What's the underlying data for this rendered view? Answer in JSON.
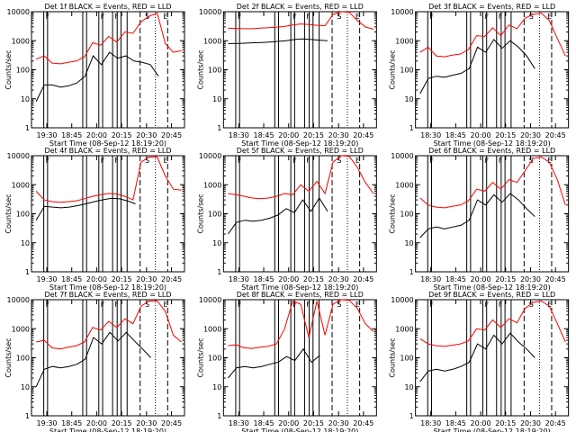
{
  "chart_data": [
    {
      "type": "line",
      "title": "Det 1f BLACK = Events, RED = LLD",
      "xlabel": "Start Time (08-Sep-12 18:19:20)",
      "ylabel": "Counts/sec",
      "x_ticks": [
        "19:30",
        "18:45",
        "20:00",
        "20:15",
        "20:30",
        "20:45"
      ],
      "y_ticks": [
        "1",
        "10",
        "100",
        "1000",
        "10000"
      ],
      "ylim": [
        1,
        10000
      ],
      "yscale": "log",
      "flags": [
        "F",
        "F",
        "F",
        "S",
        "E"
      ],
      "series": [
        {
          "color": "#ff0000",
          "values": [
            230,
            300,
            170,
            160,
            180,
            200,
            280,
            850,
            700,
            1400,
            900,
            2000,
            1800,
            4500,
            7000,
            9000,
            800,
            400,
            450
          ]
        },
        {
          "color": "#000000",
          "values": [
            8,
            30,
            30,
            25,
            28,
            35,
            60,
            300,
            150,
            400,
            250,
            300,
            200,
            180,
            150,
            60
          ]
        }
      ]
    },
    {
      "type": "line",
      "title": "Det 2f BLACK = Events, RED = LLD",
      "xlabel": "Start Time (08-Sep-12 18:19:20)",
      "ylabel": "Counts/sec",
      "x_ticks": [
        "18:30",
        "18:45",
        "20:00",
        "20:15",
        "20:30",
        "20:45"
      ],
      "y_ticks": [
        "1",
        "10",
        "100",
        "1000",
        "10000"
      ],
      "ylim": [
        1,
        10000
      ],
      "yscale": "log",
      "flags": [
        "F",
        "F",
        "F",
        "S",
        "E"
      ],
      "series": [
        {
          "color": "#ff0000",
          "values": [
            2700,
            2650,
            2600,
            2600,
            2700,
            2800,
            2900,
            3100,
            3500,
            3800,
            3600,
            3400,
            3300,
            8000,
            10000,
            9500,
            5000,
            3000,
            2500
          ]
        },
        {
          "color": "#000000",
          "values": [
            800,
            800,
            820,
            850,
            870,
            900,
            950,
            1000,
            1100,
            1150,
            1100,
            1050,
            1000
          ]
        }
      ]
    },
    {
      "type": "line",
      "title": "Det 3f BLACK = Events, RED = LLD",
      "xlabel": "Start Time (08-Sep-12 18:19:20)",
      "ylabel": "Counts/sec",
      "x_ticks": [
        "18:30",
        "18:45",
        "20:00",
        "20:15",
        "20:30",
        "20:45"
      ],
      "y_ticks": [
        "1",
        "10",
        "100",
        "1000",
        "10000"
      ],
      "ylim": [
        1,
        10000
      ],
      "yscale": "log",
      "flags": [
        "F",
        "F",
        "F",
        "S",
        "E"
      ],
      "series": [
        {
          "color": "#ff0000",
          "values": [
            400,
            600,
            300,
            280,
            320,
            350,
            500,
            1500,
            1400,
            2800,
            1500,
            3500,
            2600,
            6000,
            8000,
            9000,
            5000,
            1200,
            300
          ]
        },
        {
          "color": "#000000",
          "values": [
            15,
            50,
            60,
            55,
            65,
            75,
            110,
            600,
            400,
            1100,
            550,
            1000,
            600,
            300,
            110
          ]
        }
      ]
    },
    {
      "type": "line",
      "title": "Det 4f BLACK = Events, RED = LLD",
      "xlabel": "Start Time (08-Sep-12 18:19:20)",
      "ylabel": "Counts/sec",
      "x_ticks": [
        "19:30",
        "18:45",
        "20:00",
        "20:15",
        "20:30",
        "20:45"
      ],
      "y_ticks": [
        "1",
        "10",
        "100",
        "1000",
        "10000"
      ],
      "ylim": [
        1,
        10000
      ],
      "yscale": "log",
      "flags": [
        "F",
        "F",
        "F",
        "S",
        "E"
      ],
      "series": [
        {
          "color": "#ff0000",
          "values": [
            600,
            300,
            260,
            250,
            260,
            280,
            330,
            400,
            450,
            500,
            480,
            400,
            300,
            6000,
            9000,
            9000,
            2000,
            700,
            650
          ]
        },
        {
          "color": "#000000",
          "values": [
            60,
            180,
            170,
            160,
            170,
            190,
            220,
            260,
            300,
            340,
            330,
            280,
            220
          ]
        }
      ]
    },
    {
      "type": "line",
      "title": "Det 5f BLACK = Events, RED = LLD",
      "xlabel": "Start Time (08-Sep-12 18:19:20)",
      "ylabel": "Counts/sec",
      "x_ticks": [
        "18:30",
        "18:45",
        "20:00",
        "20:15",
        "20:30",
        "20:45"
      ],
      "y_ticks": [
        "1",
        "10",
        "100",
        "1000",
        "10000"
      ],
      "ylim": [
        1,
        10000
      ],
      "yscale": "log",
      "flags": [
        "F",
        "F",
        "F",
        "S",
        "E"
      ],
      "series": [
        {
          "color": "#ff0000",
          "values": [
            500,
            450,
            400,
            350,
            330,
            350,
            400,
            500,
            450,
            1000,
            600,
            1300,
            500,
            6000,
            10000,
            9500,
            4000,
            1200,
            500
          ]
        },
        {
          "color": "#000000",
          "values": [
            20,
            50,
            60,
            55,
            60,
            70,
            90,
            150,
            110,
            300,
            120,
            350,
            120
          ]
        }
      ]
    },
    {
      "type": "line",
      "title": "Det 6f BLACK = Events, RED = LLD",
      "xlabel": "Start Time (08-Sep-12 18:19:20)",
      "ylabel": "Counts/sec",
      "x_ticks": [
        "18:30",
        "18:45",
        "20:00",
        "20:15",
        "20:30",
        "20:45"
      ],
      "y_ticks": [
        "1",
        "10",
        "100",
        "1000",
        "10000"
      ],
      "ylim": [
        1,
        10000
      ],
      "yscale": "log",
      "flags": [
        "F",
        "F",
        "F",
        "S",
        "E"
      ],
      "series": [
        {
          "color": "#ff0000",
          "values": [
            350,
            200,
            170,
            160,
            180,
            200,
            280,
            700,
            600,
            1200,
            700,
            1500,
            1200,
            3000,
            8000,
            9000,
            6000,
            1500,
            200
          ]
        },
        {
          "color": "#000000",
          "values": [
            15,
            30,
            35,
            30,
            35,
            40,
            60,
            300,
            200,
            450,
            250,
            500,
            300,
            150,
            80
          ]
        }
      ]
    },
    {
      "type": "line",
      "title": "Det 7f BLACK = Events, RED = LLD",
      "xlabel": "Start Time (08-Sep-12 18:19:20)",
      "ylabel": "Counts/sec",
      "x_ticks": [
        "19:30",
        "18:45",
        "20:00",
        "20:15",
        "20:30",
        "20:45"
      ],
      "y_ticks": [
        "1",
        "10",
        "100",
        "1000",
        "10000"
      ],
      "ylim": [
        1,
        10000
      ],
      "yscale": "log",
      "flags": [
        "F",
        "F",
        "F",
        "S",
        "E"
      ],
      "series": [
        {
          "color": "#ff0000",
          "values": [
            350,
            400,
            220,
            200,
            230,
            260,
            350,
            1100,
            900,
            1800,
            1100,
            2200,
            1500,
            6000,
            9000,
            9000,
            4000,
            600,
            350
          ]
        },
        {
          "color": "#000000",
          "values": [
            10,
            40,
            50,
            45,
            50,
            60,
            90,
            500,
            300,
            750,
            380,
            750,
            380,
            200,
            100
          ]
        }
      ]
    },
    {
      "type": "line",
      "title": "Det 8f BLACK = Events, RED = LLD",
      "xlabel": "Start Time (08-Sep-12 18:19:20)",
      "ylabel": "Counts/sec",
      "x_ticks": [
        "18:30",
        "18:45",
        "20:00",
        "20:15",
        "20:30",
        "20:45"
      ],
      "y_ticks": [
        "1",
        "10",
        "100",
        "1000",
        "10000"
      ],
      "ylim": [
        1,
        10000
      ],
      "yscale": "log",
      "flags": [
        "F",
        "F",
        "F",
        "S",
        "E"
      ],
      "series": [
        {
          "color": "#ff0000",
          "values": [
            260,
            280,
            220,
            210,
            230,
            250,
            300,
            1000,
            9000,
            7000,
            500,
            9000,
            600,
            7000,
            10000,
            9500,
            5000,
            1500,
            800
          ]
        },
        {
          "color": "#000000",
          "values": [
            20,
            45,
            50,
            45,
            50,
            60,
            70,
            110,
            80,
            200,
            70,
            120
          ]
        }
      ]
    },
    {
      "type": "line",
      "title": "Det 9f BLACK = Events, RED = LLD",
      "xlabel": "Start Time (08-Sep-12 18:19:20)",
      "ylabel": "Counts/sec",
      "x_ticks": [
        "18:30",
        "18:45",
        "20:00",
        "20:15",
        "20:30",
        "20:45"
      ],
      "y_ticks": [
        "1",
        "10",
        "100",
        "1000",
        "10000"
      ],
      "ylim": [
        1,
        10000
      ],
      "yscale": "log",
      "flags": [
        "F",
        "F",
        "F",
        "S",
        "E"
      ],
      "series": [
        {
          "color": "#ff0000",
          "values": [
            450,
            300,
            260,
            250,
            270,
            300,
            380,
            1000,
            900,
            2000,
            1100,
            2200,
            1600,
            5000,
            8000,
            9000,
            6000,
            1500,
            350
          ]
        },
        {
          "color": "#000000",
          "values": [
            15,
            35,
            40,
            35,
            40,
            50,
            70,
            300,
            200,
            600,
            300,
            700,
            350,
            200,
            100
          ]
        }
      ]
    }
  ]
}
